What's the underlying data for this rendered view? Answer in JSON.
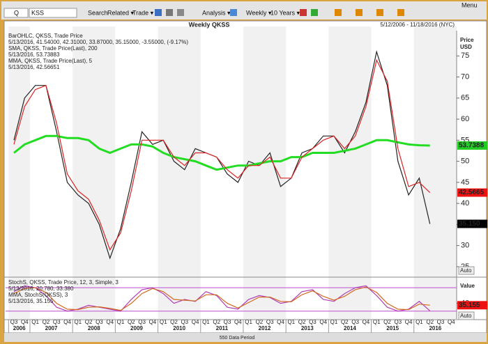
{
  "toolbar": {
    "quote_mode": "Q",
    "symbol": "KSS",
    "search": "Search",
    "related": "Related ▾",
    "trade": "Trade ▾",
    "analysis": "Analysis ▾",
    "interval": "Weekly ▾",
    "range": "10 Years ▾",
    "menu": "Menu"
  },
  "footer": "550 Data Period",
  "auto_button": "Auto",
  "chart_data": [
    {
      "type": "line",
      "title": "Weekly QKSS",
      "subtitle": "5/12/2006 - 11/18/2016 (NYC)",
      "ylabel": [
        "Price",
        "USD"
      ],
      "x": [
        "Q3",
        "Q4",
        "Q1",
        "Q2",
        "Q3",
        "Q4",
        "Q1",
        "Q2",
        "Q3",
        "Q4",
        "Q1",
        "Q2",
        "Q3",
        "Q4",
        "Q1",
        "Q2",
        "Q3",
        "Q4",
        "Q1",
        "Q2",
        "Q3",
        "Q4",
        "Q1",
        "Q2",
        "Q3",
        "Q4",
        "Q1",
        "Q2",
        "Q3",
        "Q4",
        "Q1",
        "Q2",
        "Q3",
        "Q4",
        "Q1",
        "Q2",
        "Q3",
        "Q4",
        "Q1",
        "Q2",
        "Q3",
        "Q4"
      ],
      "years": [
        "2006",
        "2007",
        "2008",
        "2009",
        "2010",
        "2011",
        "2012",
        "2013",
        "2014",
        "2015",
        "2016"
      ],
      "ylim": [
        23,
        81
      ],
      "yticks": [
        25,
        30,
        35,
        40,
        45,
        50,
        55,
        60,
        65,
        70,
        75
      ],
      "series": [
        {
          "name": "BarOHLC, QKSS, Trade Price",
          "detail": "5/13/2016, 41.54000, 42.31000, 33.87000, 35.15000, -3.55000, (-9.17%)",
          "color": "#222222",
          "tag": "35.150",
          "tag_color": "#000000",
          "values": [
            55,
            65,
            68,
            68,
            57,
            45,
            42,
            40,
            35,
            27,
            34,
            45,
            57,
            54,
            55,
            50,
            48,
            53,
            52,
            51,
            47,
            45,
            50,
            49,
            52,
            44,
            46,
            52,
            53,
            56,
            56,
            52,
            57,
            64,
            76,
            68,
            50,
            42,
            46,
            35.15,
            null,
            null
          ]
        },
        {
          "name": "SMA, QKSS, Trade Price(Last), 200",
          "detail": "5/13/2016, 53.73883",
          "color": "#22dd22",
          "tag": "53.7388",
          "tag_color": "#22cc22",
          "values": [
            52,
            54,
            55,
            56,
            56,
            55.5,
            55.5,
            55,
            53,
            52,
            53,
            54,
            54,
            53.5,
            52,
            51,
            50.5,
            50,
            49,
            48,
            48.5,
            49,
            49,
            49.5,
            50,
            50,
            51,
            51,
            52,
            52,
            52,
            52.5,
            53,
            54,
            55,
            55,
            54.5,
            54,
            53.8,
            53.74,
            null,
            null
          ]
        },
        {
          "name": "MMA, QKSS, Trade Price(Last), 5",
          "detail": "5/13/2016, 42.56651",
          "color": "#dd2222",
          "tag": "42.5665",
          "tag_color": "#ee1111",
          "values": [
            54,
            63,
            67,
            68,
            59,
            47,
            43,
            41,
            36,
            29,
            33,
            43,
            55,
            55,
            55,
            51,
            49,
            52,
            52,
            51,
            48,
            46,
            49,
            49,
            51,
            46,
            46,
            51,
            53,
            55,
            56,
            53,
            56,
            63,
            74,
            69,
            53,
            44,
            45,
            42.57,
            null,
            null
          ]
        }
      ]
    },
    {
      "type": "line",
      "ylim": [
        0,
        100
      ],
      "yticks": [
        40
      ],
      "levels": [
        20,
        80
      ],
      "ylabel": [
        "Value"
      ],
      "series": [
        {
          "name": "StochS, QKSS, Trade Price, 12, 3, Simple, 3",
          "detail": "5/13/2016, 20.780, 33.380",
          "color": "#b03cb8",
          "values": [
            70,
            85,
            80,
            60,
            30,
            20,
            25,
            35,
            30,
            25,
            20,
            50,
            75,
            80,
            65,
            40,
            50,
            45,
            70,
            60,
            30,
            25,
            50,
            60,
            55,
            40,
            45,
            70,
            75,
            50,
            45,
            65,
            80,
            85,
            60,
            30,
            20,
            25,
            45,
            20.78,
            null,
            null
          ]
        },
        {
          "name": "MMA, StochS(QKSS), 3",
          "detail": "5/13/2016, 35.155",
          "color": "#d2691e",
          "tag": "35.155",
          "tag_color": "#ee1111",
          "values": [
            65,
            78,
            80,
            68,
            40,
            25,
            24,
            30,
            31,
            27,
            22,
            40,
            65,
            78,
            70,
            50,
            48,
            46,
            62,
            62,
            40,
            28,
            42,
            56,
            56,
            45,
            44,
            62,
            72,
            58,
            48,
            58,
            75,
            82,
            68,
            40,
            25,
            24,
            38,
            35.155,
            null,
            null
          ]
        }
      ]
    }
  ]
}
